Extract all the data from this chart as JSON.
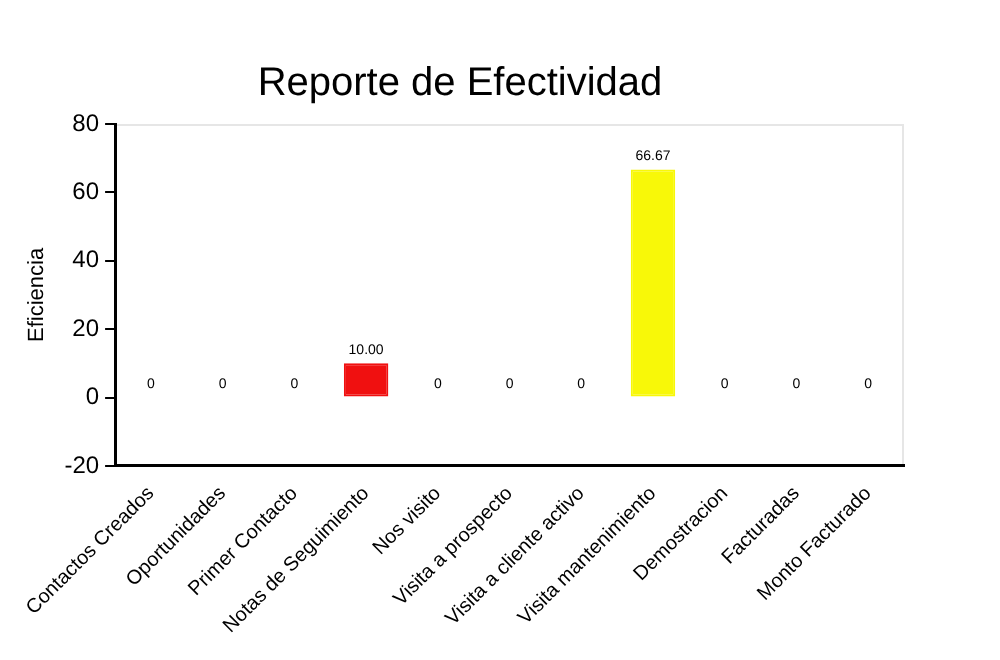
{
  "chart_data": {
    "type": "bar",
    "title": "Reporte de Efectividad",
    "ylabel": "Eficiencia",
    "categories": [
      "Contactos Creados",
      "Oportunidades",
      "Primer Contacto",
      "Notas de Seguimiento",
      "Nos visito",
      "Visita a prospecto",
      "Visita a cliente activo",
      "Visita mantenimiento",
      "Demostracion",
      "Facturadas",
      "Monto Facturado"
    ],
    "values": [
      0,
      0,
      0,
      10,
      0,
      0,
      0,
      66.67,
      0,
      0,
      0
    ],
    "value_labels": [
      "0",
      "0",
      "0",
      "10.00",
      "0",
      "0",
      "0",
      "66.67",
      "0",
      "0",
      "0"
    ],
    "colors": [
      "#f01010",
      "#f01010",
      "#f01010",
      "#f01010",
      "#f01010",
      "#f01010",
      "#f01010",
      "#f8f808",
      "#f01010",
      "#f01010",
      "#f01010"
    ],
    "ylim": [
      -20,
      80
    ],
    "yticks": [
      -20,
      0,
      20,
      40,
      60,
      80
    ],
    "grid": false,
    "legend": false
  }
}
